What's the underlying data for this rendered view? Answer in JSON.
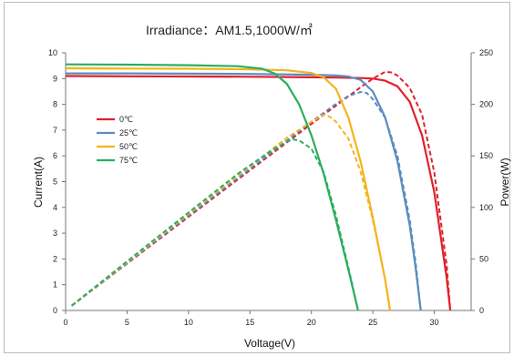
{
  "chart_data": {
    "type": "line",
    "title": "Irradiance：AM1.5,1000W/㎡",
    "xlabel": "Voltage(V)",
    "ylabel_left": "Current(A)",
    "ylabel_right": "Power(W)",
    "xlim": [
      0,
      33
    ],
    "ylim_left": [
      0,
      10
    ],
    "ylim_right": [
      0,
      250
    ],
    "x_ticks": [
      "0",
      "5",
      "10",
      "15",
      "20",
      "25",
      "30"
    ],
    "y_ticks_left": [
      "0",
      "1",
      "2",
      "3",
      "4",
      "5",
      "6",
      "7",
      "8",
      "9",
      "10"
    ],
    "y_ticks_right": [
      "0",
      "50",
      "100",
      "150",
      "200",
      "250"
    ],
    "grid": false,
    "legend_position": "upper-left",
    "legend": [
      "0℃",
      "25℃",
      "50℃",
      "75℃"
    ],
    "series": [
      {
        "name": "0℃",
        "color": "#e0202a",
        "isc": 9.1,
        "voc": 31.3,
        "iv": [
          [
            0,
            9.1
          ],
          [
            5,
            9.09
          ],
          [
            10,
            9.08
          ],
          [
            15,
            9.07
          ],
          [
            20,
            9.05
          ],
          [
            22,
            9.04
          ],
          [
            24,
            9.02
          ],
          [
            25,
            9.0
          ],
          [
            26,
            8.92
          ],
          [
            27,
            8.7
          ],
          [
            28,
            8.1
          ],
          [
            29,
            6.8
          ],
          [
            30,
            4.6
          ],
          [
            31,
            1.3
          ],
          [
            31.3,
            0
          ]
        ],
        "pv": [
          [
            0.5,
            4.6
          ],
          [
            5,
            45.5
          ],
          [
            10,
            90.8
          ],
          [
            15,
            136
          ],
          [
            20,
            181
          ],
          [
            24,
            216.5
          ],
          [
            25,
            225
          ],
          [
            26,
            231.5
          ],
          [
            26.5,
            231
          ],
          [
            27,
            228
          ],
          [
            28,
            216
          ],
          [
            29,
            190
          ],
          [
            30,
            134
          ],
          [
            31,
            45
          ],
          [
            31.3,
            0
          ]
        ]
      },
      {
        "name": "25℃",
        "color": "#5b8cc2",
        "isc": 9.2,
        "voc": 28.9,
        "iv": [
          [
            0,
            9.2
          ],
          [
            5,
            9.2
          ],
          [
            10,
            9.19
          ],
          [
            15,
            9.18
          ],
          [
            20,
            9.15
          ],
          [
            22,
            9.12
          ],
          [
            23,
            9.08
          ],
          [
            24,
            8.95
          ],
          [
            25,
            8.5
          ],
          [
            26,
            7.5
          ],
          [
            27,
            5.8
          ],
          [
            28,
            3.3
          ],
          [
            28.5,
            1.6
          ],
          [
            28.9,
            0
          ]
        ],
        "pv": [
          [
            0.5,
            4.6
          ],
          [
            5,
            46
          ],
          [
            10,
            92
          ],
          [
            15,
            137.5
          ],
          [
            20,
            183
          ],
          [
            22,
            200.5
          ],
          [
            23,
            208
          ],
          [
            24,
            212
          ],
          [
            24.5,
            211
          ],
          [
            25,
            205
          ],
          [
            26,
            187
          ],
          [
            27,
            150
          ],
          [
            28,
            88
          ],
          [
            28.5,
            45
          ],
          [
            28.9,
            0
          ]
        ]
      },
      {
        "name": "50℃",
        "color": "#f5b41b",
        "isc": 9.4,
        "voc": 26.4,
        "iv": [
          [
            0,
            9.4
          ],
          [
            5,
            9.39
          ],
          [
            10,
            9.38
          ],
          [
            15,
            9.36
          ],
          [
            18,
            9.32
          ],
          [
            20,
            9.22
          ],
          [
            21,
            9.05
          ],
          [
            22,
            8.6
          ],
          [
            23,
            7.5
          ],
          [
            24,
            5.8
          ],
          [
            25,
            3.6
          ],
          [
            26,
            1.2
          ],
          [
            26.4,
            0
          ]
        ],
        "pv": [
          [
            0.5,
            4.7
          ],
          [
            5,
            47
          ],
          [
            10,
            93.8
          ],
          [
            15,
            140
          ],
          [
            18,
            167.5
          ],
          [
            20,
            183
          ],
          [
            21,
            190
          ],
          [
            21.5,
            188
          ],
          [
            22,
            183
          ],
          [
            23,
            167
          ],
          [
            24,
            135
          ],
          [
            25,
            88
          ],
          [
            26,
            30
          ],
          [
            26.4,
            0
          ]
        ]
      },
      {
        "name": "75℃",
        "color": "#2aae5e",
        "isc": 9.55,
        "voc": 23.8,
        "iv": [
          [
            0,
            9.55
          ],
          [
            5,
            9.54
          ],
          [
            10,
            9.52
          ],
          [
            14,
            9.48
          ],
          [
            16,
            9.38
          ],
          [
            17,
            9.2
          ],
          [
            18,
            8.8
          ],
          [
            19,
            8.0
          ],
          [
            20,
            6.8
          ],
          [
            21,
            5.3
          ],
          [
            22,
            3.5
          ],
          [
            23,
            1.6
          ],
          [
            23.8,
            0
          ]
        ],
        "pv": [
          [
            0.5,
            4.8
          ],
          [
            5,
            47.7
          ],
          [
            10,
            95
          ],
          [
            14,
            132.5
          ],
          [
            16,
            149
          ],
          [
            17,
            157
          ],
          [
            18,
            164
          ],
          [
            18.5,
            166
          ],
          [
            19,
            165
          ],
          [
            20,
            157
          ],
          [
            21,
            134
          ],
          [
            22,
            92
          ],
          [
            23,
            42
          ],
          [
            23.8,
            0
          ]
        ]
      }
    ]
  }
}
